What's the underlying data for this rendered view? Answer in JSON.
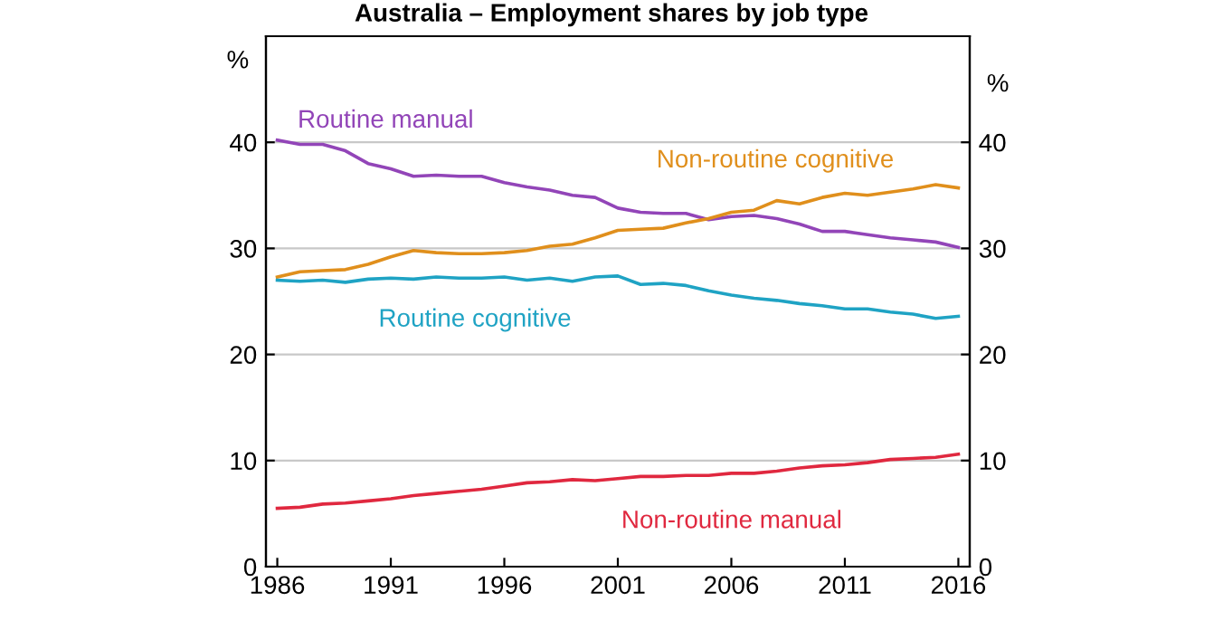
{
  "chart_data": {
    "type": "line",
    "title": "Australia – Employment shares by job type",
    "ylabel": "%",
    "y2label": "%",
    "x": [
      1986,
      1987,
      1988,
      1989,
      1990,
      1991,
      1992,
      1993,
      1994,
      1995,
      1996,
      1997,
      1998,
      1999,
      2000,
      2001,
      2002,
      2003,
      2004,
      2005,
      2006,
      2007,
      2008,
      2009,
      2010,
      2011,
      2012,
      2013,
      2014,
      2015,
      2016
    ],
    "series": [
      {
        "name": "Routine manual",
        "color": "#9245b8",
        "values": [
          40.2,
          39.8,
          39.8,
          39.2,
          38.0,
          37.5,
          36.8,
          36.9,
          36.8,
          36.8,
          36.2,
          35.8,
          35.5,
          35.0,
          34.8,
          33.8,
          33.4,
          33.3,
          33.3,
          32.7,
          33.0,
          33.1,
          32.8,
          32.3,
          31.6,
          31.6,
          31.3,
          31.0,
          30.8,
          30.6,
          30.1
        ]
      },
      {
        "name": "Non-routine cognitive",
        "color": "#e08f1c",
        "values": [
          27.3,
          27.8,
          27.9,
          28.0,
          28.5,
          29.2,
          29.8,
          29.6,
          29.5,
          29.5,
          29.6,
          29.8,
          30.2,
          30.4,
          31.0,
          31.7,
          31.8,
          31.9,
          32.4,
          32.8,
          33.4,
          33.6,
          34.5,
          34.2,
          34.8,
          35.2,
          35.0,
          35.3,
          35.6,
          36.0,
          35.7
        ]
      },
      {
        "name": "Routine cognitive",
        "color": "#1fa3c4",
        "values": [
          27.0,
          26.9,
          27.0,
          26.8,
          27.1,
          27.2,
          27.1,
          27.3,
          27.2,
          27.2,
          27.3,
          27.0,
          27.2,
          26.9,
          27.3,
          27.4,
          26.6,
          26.7,
          26.5,
          26.0,
          25.6,
          25.3,
          25.1,
          24.8,
          24.6,
          24.3,
          24.3,
          24.0,
          23.8,
          23.4,
          23.6
        ]
      },
      {
        "name": "Non-routine manual",
        "color": "#e0283f",
        "values": [
          5.5,
          5.6,
          5.9,
          6.0,
          6.2,
          6.4,
          6.7,
          6.9,
          7.1,
          7.3,
          7.6,
          7.9,
          8.0,
          8.2,
          8.1,
          8.3,
          8.5,
          8.5,
          8.6,
          8.6,
          8.8,
          8.8,
          9.0,
          9.3,
          9.5,
          9.6,
          9.8,
          10.1,
          10.2,
          10.3,
          10.6
        ]
      }
    ],
    "xlim": [
      1985.5,
      2016.5
    ],
    "xticks": [
      1986,
      1991,
      1996,
      2001,
      2006,
      2011,
      2016
    ],
    "ylim": [
      0,
      50
    ],
    "yticks": [
      0,
      10,
      20,
      30,
      40
    ],
    "y2lim": [
      0,
      50
    ],
    "y2ticks": [
      0,
      10,
      20,
      30,
      40
    ],
    "grid": "y",
    "legend": false
  }
}
